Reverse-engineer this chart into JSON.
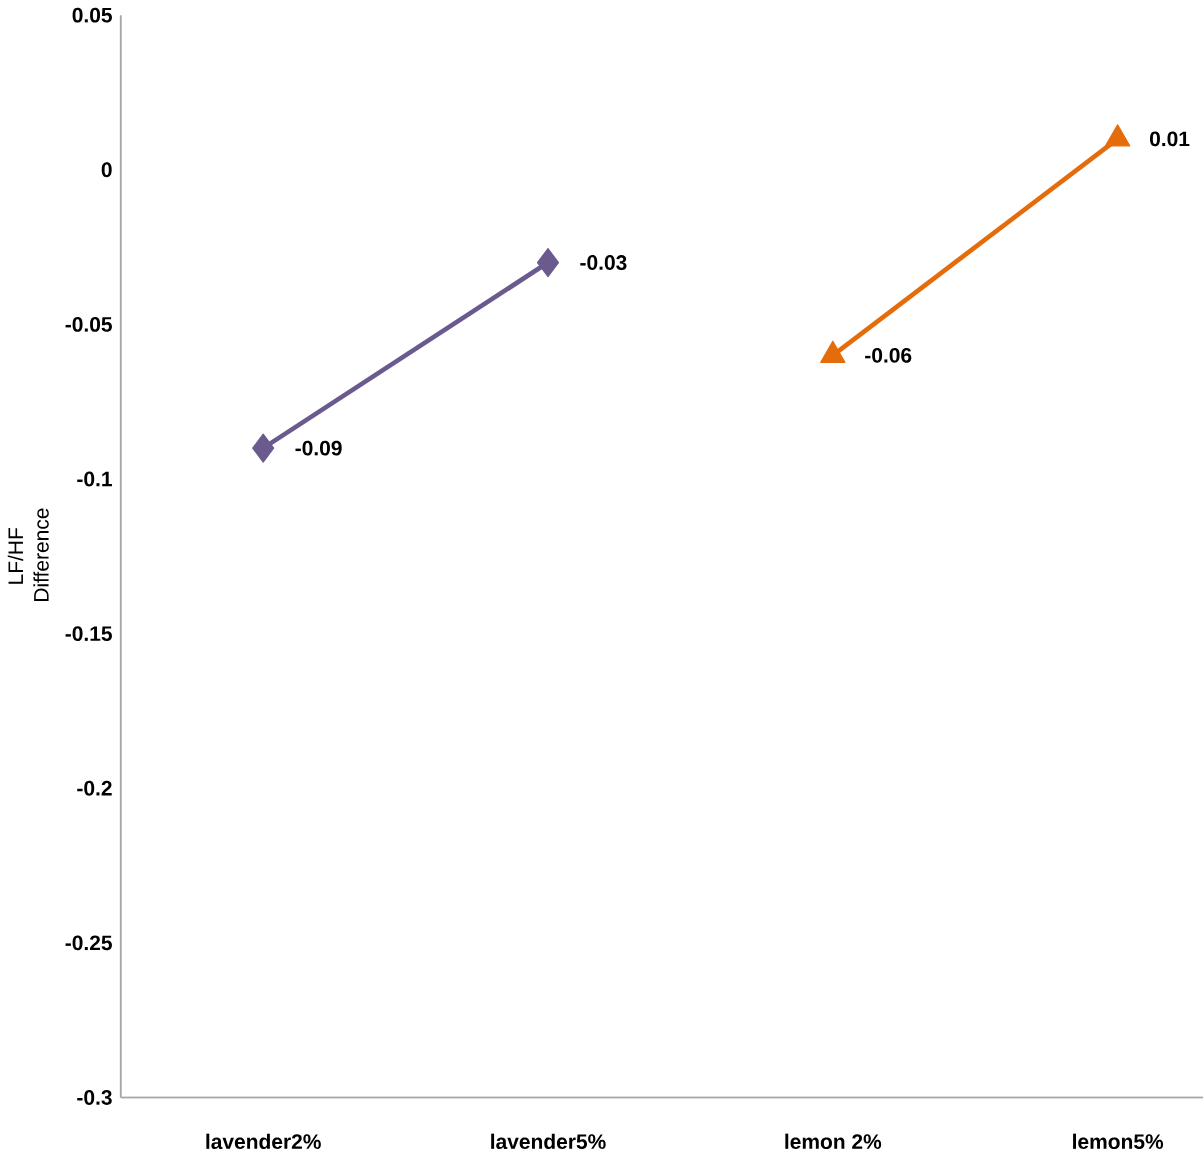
{
  "chart_data": {
    "type": "line",
    "ylabel": "LF/HF Difference",
    "categories": [
      "lavender2%",
      "lavender5%",
      "lemon 2%",
      "lemon5%"
    ],
    "series": [
      {
        "color": "#6b5a8e",
        "marker": "diamond",
        "values": [
          -0.09,
          -0.03,
          null,
          null
        ]
      },
      {
        "color": "#e46c0a",
        "marker": "triangle",
        "values": [
          null,
          null,
          -0.06,
          0.01
        ]
      }
    ],
    "data_labels": true,
    "ylim": [
      -0.3,
      0.05
    ],
    "yticks": [
      -0.3,
      -0.25,
      -0.2,
      -0.15,
      -0.1,
      -0.05,
      0,
      0.05
    ],
    "line_style": "solid"
  }
}
